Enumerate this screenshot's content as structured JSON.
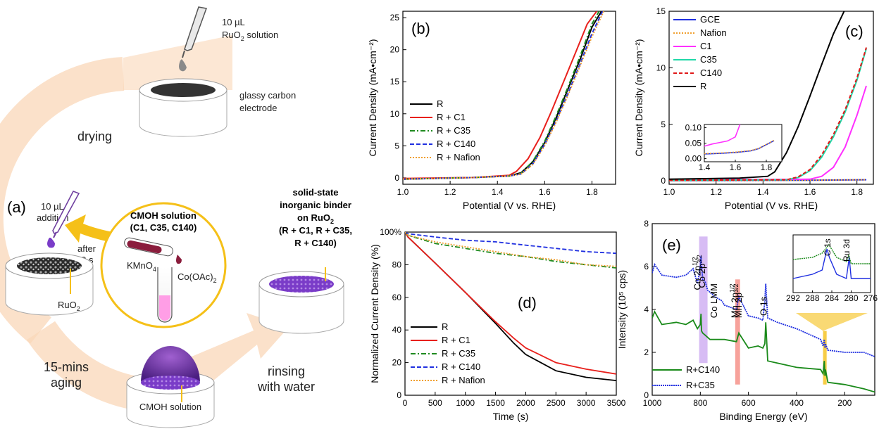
{
  "colors": {
    "R": "#000000",
    "C1": "#e8201c",
    "C35": "#1f8a1f",
    "C140": "#1f2fe0",
    "Nafion": "#f0a030",
    "GCE": "#1f2fe0",
    "NafionC": "#f0a030",
    "C1c": "#ff30ff",
    "C35c": "#20d8a8",
    "C140c": "#e01818",
    "Rc": "#000000",
    "xps1": "#1a8a1a",
    "xps2": "#1f2fe0",
    "arrow": "#fad7b8",
    "gold": "#f5c018",
    "purple": "#6a2fa0"
  },
  "scheme": {
    "panel_label": "(a)",
    "drop_volume": "10 µL",
    "drop_solution": "RuO",
    "drop_solution_sub": "2",
    "drop_solution_suffix": " solution",
    "electrode_label_1": "glassy carbon",
    "electrode_label_2": "electrode",
    "step_drying": "drying",
    "addition_1": "10 µL",
    "addition_2": "addition",
    "after_1": "after",
    "after_2": "30 s",
    "ruo2": "RuO",
    "ruo2_sub": "2",
    "cmoh_title_1": "CMOH solution",
    "cmoh_title_2": "(C1, C35, C140)",
    "kmno4": "KMnO",
    "kmno4_sub": "4",
    "cooac": "Co(OAc)",
    "cooac_sub": "2",
    "binder_1": "solid-state",
    "binder_2": "inorganic binder",
    "binder_3": "on RuO",
    "binder_3_sub": "2",
    "binder_4": "(R + C1, R + C35,",
    "binder_5": "R + C140)",
    "aging_1": "15-mins",
    "aging_2": "aging",
    "rinse_1": "rinsing",
    "rinse_2": "with water",
    "cmoh_label": "CMOH solution"
  },
  "chart_data": [
    {
      "panel": "(b)",
      "type": "line",
      "xlabel": "Potential (V vs. RHE)",
      "ylabel": "Current Density (mA•cm⁻²)",
      "xlim": [
        1.0,
        1.9
      ],
      "ylim": [
        -1,
        26
      ],
      "xticks": [
        "1.0",
        "1.2",
        "1.4",
        "1.6",
        "1.8"
      ],
      "yticks": [
        "0",
        "5",
        "10",
        "15",
        "20",
        "25"
      ],
      "legend": "center-left",
      "series": [
        {
          "name": "R",
          "key": "R",
          "dash": "",
          "x": [
            1.0,
            1.3,
            1.45,
            1.5,
            1.55,
            1.6,
            1.65,
            1.7,
            1.75,
            1.8,
            1.84
          ],
          "y": [
            -0.2,
            0.05,
            0.3,
            0.8,
            2.5,
            5.5,
            9.5,
            14,
            18.5,
            23.5,
            26
          ]
        },
        {
          "name": "R + C1",
          "key": "C1",
          "dash": "",
          "x": [
            1.0,
            1.3,
            1.45,
            1.48,
            1.53,
            1.58,
            1.63,
            1.68,
            1.73,
            1.78,
            1.82
          ],
          "y": [
            -0.1,
            0.05,
            0.4,
            1,
            3,
            6.3,
            10.5,
            15,
            19.5,
            24,
            26
          ]
        },
        {
          "name": "R + C35",
          "key": "C35",
          "dash": "7,3,2,3",
          "x": [
            1.0,
            1.3,
            1.45,
            1.5,
            1.55,
            1.6,
            1.65,
            1.7,
            1.75,
            1.8,
            1.83
          ],
          "y": [
            -0.2,
            0.05,
            0.3,
            0.7,
            2.6,
            5.7,
            9.8,
            14.3,
            19,
            24,
            26
          ]
        },
        {
          "name": "R + C140",
          "key": "C140",
          "dash": "6,3",
          "x": [
            1.0,
            1.3,
            1.45,
            1.5,
            1.55,
            1.6,
            1.65,
            1.7,
            1.75,
            1.8,
            1.845
          ],
          "y": [
            -0.2,
            0.05,
            0.3,
            0.6,
            2.2,
            5.2,
            9,
            13.3,
            17.8,
            22.5,
            26
          ]
        },
        {
          "name": "R + Nafion",
          "key": "Nafion",
          "dash": "2,2",
          "x": [
            1.0,
            1.3,
            1.45,
            1.5,
            1.55,
            1.6,
            1.65,
            1.7,
            1.75,
            1.8,
            1.85
          ],
          "y": [
            -0.2,
            0.05,
            0.3,
            0.6,
            2.1,
            5,
            8.8,
            13,
            17.5,
            22,
            26
          ]
        }
      ]
    },
    {
      "panel": "(c)",
      "type": "line",
      "xlabel": "Potential (V vs. RHE)",
      "ylabel": "Current Density (mA•cm⁻²)",
      "xlim": [
        1.0,
        1.87
      ],
      "ylim": [
        -0.3,
        15
      ],
      "xticks": [
        "1.0",
        "1.2",
        "1.4",
        "1.6",
        "1.8"
      ],
      "yticks": [
        "0",
        "5",
        "10",
        "15"
      ],
      "legend": "top-left",
      "series": [
        {
          "name": "GCE",
          "key": "GCE",
          "dash": "",
          "x": [
            1.0,
            1.4,
            1.6,
            1.84
          ],
          "y": [
            0.02,
            0.04,
            0.06,
            0.1
          ]
        },
        {
          "name": "Nafion",
          "key": "NafionC",
          "dash": "2,2",
          "x": [
            1.0,
            1.4,
            1.6,
            1.84
          ],
          "y": [
            0.02,
            0.04,
            0.06,
            0.1
          ]
        },
        {
          "name": "C1",
          "key": "C1c",
          "dash": "",
          "x": [
            1.0,
            1.6,
            1.65,
            1.7,
            1.75,
            1.8,
            1.84
          ],
          "y": [
            0.08,
            0.15,
            0.4,
            1.2,
            3,
            5.8,
            8.4
          ]
        },
        {
          "name": "C35",
          "key": "C35c",
          "dash": "",
          "x": [
            1.0,
            1.5,
            1.55,
            1.6,
            1.65,
            1.7,
            1.75,
            1.8,
            1.84
          ],
          "y": [
            0.05,
            0.1,
            0.3,
            0.9,
            2.1,
            3.9,
            6.1,
            8.9,
            11.7
          ]
        },
        {
          "name": "C140",
          "key": "C140c",
          "dash": "5,3",
          "x": [
            1.0,
            1.5,
            1.55,
            1.6,
            1.65,
            1.7,
            1.75,
            1.8,
            1.84
          ],
          "y": [
            0.05,
            0.1,
            0.35,
            1,
            2.3,
            4.1,
            6.3,
            9.1,
            11.8
          ]
        },
        {
          "name": "R",
          "key": "Rc",
          "dash": "",
          "x": [
            1.0,
            1.3,
            1.42,
            1.45,
            1.5,
            1.55,
            1.6,
            1.65,
            1.7,
            1.75
          ],
          "y": [
            0.15,
            0.25,
            0.4,
            0.8,
            2.5,
            4.8,
            7.5,
            10.3,
            13,
            15.2
          ]
        }
      ],
      "inset": {
        "xlim": [
          1.4,
          1.9
        ],
        "ylim": [
          -0.01,
          0.11
        ],
        "xticks": [
          "1.4",
          "1.6",
          "1.8"
        ],
        "yticks": [
          "0.00",
          "0.05",
          "0.10"
        ],
        "series": [
          {
            "key": "C1c",
            "x": [
              1.4,
              1.45,
              1.5,
              1.55,
              1.6,
              1.63
            ],
            "y": [
              0.04,
              0.047,
              0.052,
              0.057,
              0.07,
              0.11
            ]
          },
          {
            "key": "GCE",
            "x": [
              1.4,
              1.5,
              1.6,
              1.7,
              1.75,
              1.8,
              1.85
            ],
            "y": [
              0.015,
              0.017,
              0.02,
              0.025,
              0.032,
              0.045,
              0.058
            ]
          },
          {
            "key": "NafionC",
            "dash": "2,2",
            "x": [
              1.4,
              1.5,
              1.6,
              1.7,
              1.75,
              1.8,
              1.85
            ],
            "y": [
              0.016,
              0.018,
              0.021,
              0.026,
              0.033,
              0.046,
              0.059
            ]
          }
        ]
      }
    },
    {
      "panel": "(d)",
      "type": "line",
      "xlabel": "Time (s)",
      "ylabel": "Normalized Current Density (%)",
      "xlim": [
        0,
        3500
      ],
      "ylim": [
        0,
        100
      ],
      "xticks": [
        "0",
        "500",
        "1000",
        "1500",
        "2000",
        "2500",
        "3000",
        "3500"
      ],
      "yticks": [
        "0",
        "20",
        "40",
        "60",
        "80",
        "100%"
      ],
      "legend": "bottom-left",
      "series": [
        {
          "name": "R",
          "key": "R",
          "dash": "",
          "x": [
            0,
            50,
            500,
            1000,
            1500,
            1800,
            2000,
            2500,
            3000,
            3500
          ],
          "y": [
            100,
            97,
            81,
            63,
            44,
            32,
            25,
            15,
            11,
            9
          ]
        },
        {
          "name": "R + C1",
          "key": "C1",
          "dash": "",
          "x": [
            0,
            50,
            500,
            1000,
            1500,
            1800,
            2000,
            2500,
            3000,
            3500
          ],
          "y": [
            100,
            97,
            81,
            63,
            45,
            35,
            29,
            20,
            16,
            13
          ]
        },
        {
          "name": "R + C35",
          "key": "C35",
          "dash": "7,3,2,3",
          "x": [
            0,
            50,
            500,
            1000,
            1500,
            2000,
            2500,
            3000,
            3500
          ],
          "y": [
            100,
            98,
            93,
            90,
            87,
            85,
            82,
            80,
            78
          ]
        },
        {
          "name": "R + C140",
          "key": "C140",
          "dash": "6,3",
          "x": [
            0,
            50,
            500,
            1000,
            1500,
            2000,
            2500,
            3000,
            3500
          ],
          "y": [
            100,
            99,
            97,
            95,
            94,
            92,
            90,
            88,
            87
          ]
        },
        {
          "name": "R + Nafion",
          "key": "Nafion",
          "dash": "2,2",
          "x": [
            0,
            50,
            500,
            1000,
            1500,
            2000,
            2500,
            3000,
            3500
          ],
          "y": [
            100,
            98,
            94,
            91,
            88,
            85,
            83,
            80,
            79
          ]
        }
      ]
    },
    {
      "panel": "(e)",
      "type": "line",
      "xlabel": "Binding Energy (eV)",
      "ylabel": "Intensity (10⁵ cps)",
      "xlim": [
        1000,
        75
      ],
      "ylim": [
        0,
        8
      ],
      "xticks": [
        "1000",
        "800",
        "600",
        "400",
        "200"
      ],
      "yticks": [
        "0",
        "2",
        "4",
        "6",
        "8"
      ],
      "legend": "bottom-left",
      "peak_labels": [
        "Co 2p",
        "Co 2p",
        "Co LMM",
        "Mn 2p",
        "Mn 2p",
        "O 1s"
      ],
      "peak_sups": [
        "1/2",
        "3/2",
        "",
        "1/2",
        "3/2",
        ""
      ],
      "series": [
        {
          "name": "R+C140",
          "key": "xps1",
          "dash": "",
          "x": [
            1000,
            990,
            960,
            900,
            860,
            830,
            812,
            800,
            797,
            795,
            790,
            780,
            760,
            700,
            650,
            640,
            600,
            560,
            540,
            532,
            528,
            520,
            480,
            400,
            300,
            290,
            285,
            282,
            280,
            270,
            200,
            120,
            75
          ],
          "y": [
            3.6,
            3.9,
            3.3,
            3.4,
            3.3,
            3.5,
            3.1,
            3.3,
            3.8,
            3.0,
            2.9,
            2.8,
            2.6,
            2.6,
            2.5,
            2.9,
            2.2,
            2.3,
            2.2,
            2.4,
            3.4,
            1.6,
            1.5,
            1.3,
            1.2,
            1.0,
            1.6,
            0.9,
            1.2,
            0.6,
            0.5,
            0.3,
            0.15
          ]
        },
        {
          "name": "R+C35",
          "key": "xps2",
          "dash": "2,1",
          "x": [
            1000,
            990,
            960,
            900,
            860,
            830,
            812,
            800,
            797,
            795,
            790,
            780,
            770,
            740,
            710,
            700,
            650,
            640,
            600,
            560,
            540,
            532,
            528,
            520,
            480,
            400,
            300,
            290,
            285,
            282,
            280,
            270,
            200,
            120,
            75
          ],
          "y": [
            5.7,
            6.1,
            5.6,
            5.5,
            5.6,
            5.9,
            5.2,
            6.0,
            6.5,
            6.1,
            5.4,
            5.3,
            4.9,
            4.6,
            4.4,
            4.2,
            4.0,
            4.6,
            3.7,
            3.6,
            3.5,
            4.4,
            5.2,
            3.6,
            3.4,
            3.1,
            2.6,
            2.3,
            2.6,
            2.2,
            2.4,
            2.1,
            2.0,
            2.0,
            1.8
          ]
        }
      ],
      "inset": {
        "xlim": [
          292,
          276
        ],
        "xticks": [
          "292",
          "288",
          "284",
          "280",
          "276"
        ],
        "peak_labels": [
          "C 1s",
          "Ru 3d"
        ]
      }
    }
  ]
}
